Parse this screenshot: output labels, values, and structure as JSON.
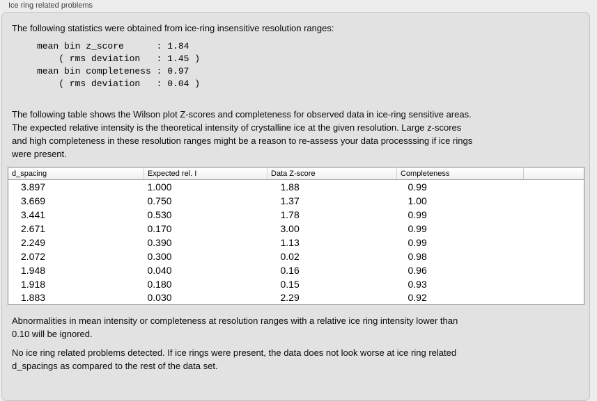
{
  "colors": {
    "page_background": "#ededed",
    "panel_background": "#e2e2e2",
    "table_background": "#ffffff",
    "text": "#000000"
  },
  "panel": {
    "title": "Ice ring related problems"
  },
  "intro": {
    "text": "The following statistics were obtained from ice-ring insensitive resolution ranges:"
  },
  "stats_block": {
    "text": "mean bin z_score      : 1.84\n    ( rms deviation   : 1.45 )\nmean bin completeness : 0.97\n    ( rms deviation   : 0.04 )",
    "mean_bin_z_score": "1.84",
    "z_score_rms_deviation": "1.45",
    "mean_bin_completeness": "0.97",
    "completeness_rms_deviation": "0.04"
  },
  "description": {
    "text": "The following table shows the Wilson plot Z-scores and completeness for observed data in ice-ring sensitive areas.\nThe expected relative intensity is the theoretical intensity of crystalline ice at the given resolution. Large z-scores\nand high completeness in these resolution ranges might be a reason to re-assess your data processsing if ice rings\nwere present."
  },
  "table": {
    "headers": [
      "d_spacing",
      "Expected rel. I",
      "Data Z-score",
      "Completeness",
      ""
    ],
    "rows": [
      [
        "3.897",
        "1.000",
        "1.88",
        "0.99"
      ],
      [
        "3.669",
        "0.750",
        "1.37",
        "1.00"
      ],
      [
        "3.441",
        "0.530",
        "1.78",
        "0.99"
      ],
      [
        "2.671",
        "0.170",
        "3.00",
        "0.99"
      ],
      [
        "2.249",
        "0.390",
        "1.13",
        "0.99"
      ],
      [
        "2.072",
        "0.300",
        "0.02",
        "0.98"
      ],
      [
        "1.948",
        "0.040",
        "0.16",
        "0.96"
      ],
      [
        "1.918",
        "0.180",
        "0.15",
        "0.93"
      ],
      [
        "1.883",
        "0.030",
        "2.29",
        "0.92"
      ]
    ]
  },
  "notes": {
    "ignore_note": "Abnormalities in mean intensity or completeness at resolution ranges with a relative ice ring intensity lower than\n0.10 will be ignored.",
    "conclusion": "No ice ring related problems detected. If ice rings were present, the data does not look worse at ice ring related\nd_spacings as compared to the rest of the data set."
  }
}
